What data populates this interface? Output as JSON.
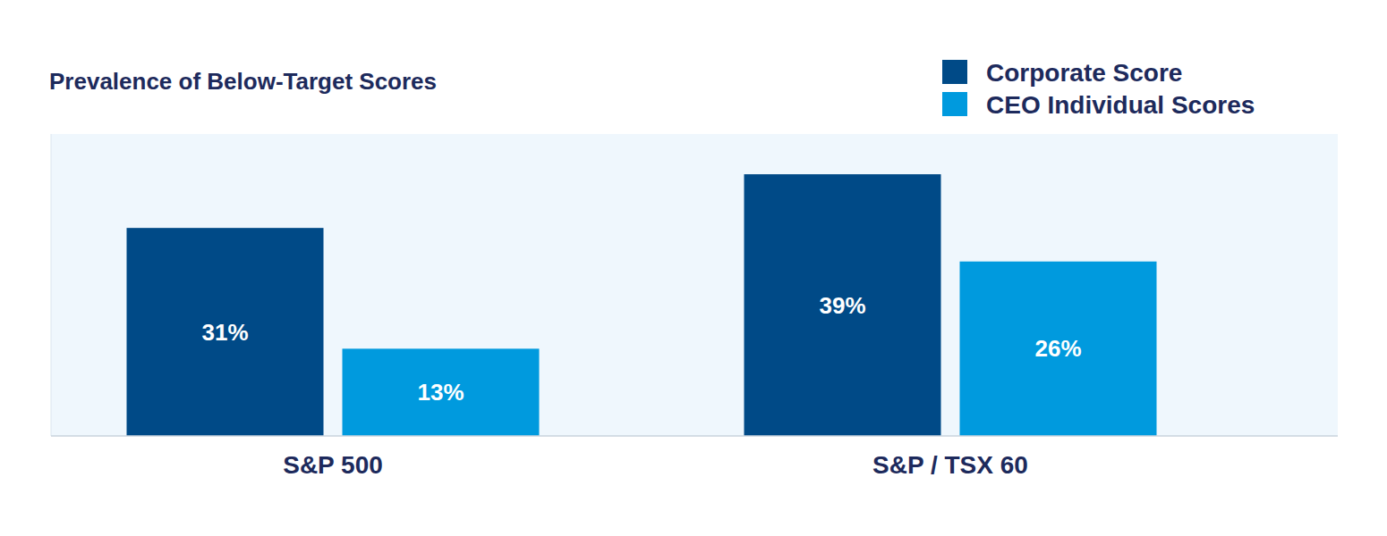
{
  "chart_data": {
    "type": "bar",
    "title": "Prevalence of Below-Target Scores",
    "categories": [
      "S&P 500",
      "S&P / TSX 60"
    ],
    "series": [
      {
        "name": "Corporate Score",
        "color": "#004a87",
        "values": [
          31,
          39
        ],
        "value_labels": [
          "31%",
          "39%"
        ]
      },
      {
        "name": "CEO Individual Scores",
        "color": "#009ade",
        "values": [
          13,
          26
        ],
        "value_labels": [
          "13%",
          "26%"
        ]
      }
    ],
    "ylim": [
      0,
      45
    ],
    "tick_labels": false,
    "data_labels": true,
    "legend": "top-right",
    "grid": false
  }
}
